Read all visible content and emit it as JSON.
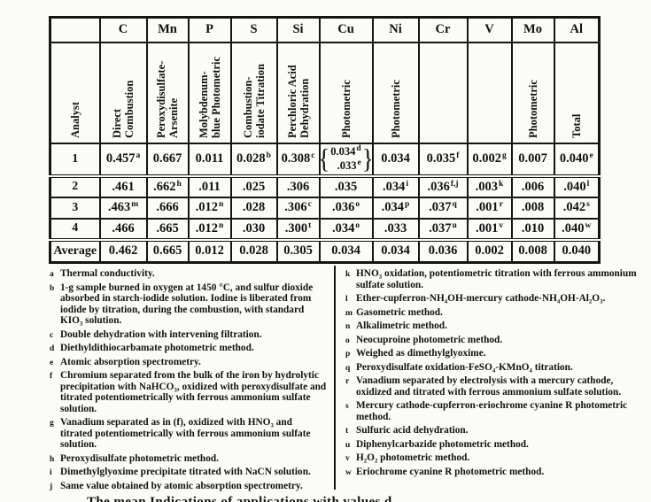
{
  "page": {
    "ink": "#151515",
    "paper": "#fbfbf8"
  },
  "table": {
    "columns": [
      {
        "symbol": "",
        "method": "Analyst"
      },
      {
        "symbol": "C",
        "method": "Direct\nCombustion"
      },
      {
        "symbol": "Mn",
        "method": "Peroxydisulfate-\nArsenite"
      },
      {
        "symbol": "P",
        "method": "Molybdenum-\nblue Photometric"
      },
      {
        "symbol": "S",
        "method": "Combustion-\niodate Titration"
      },
      {
        "symbol": "Si",
        "method": "Perchloric Acid\nDehydration"
      },
      {
        "symbol": "Cu",
        "method": "Photometric"
      },
      {
        "symbol": "Ni",
        "method": "Photometric"
      },
      {
        "symbol": "Cr",
        "method": ""
      },
      {
        "symbol": "V",
        "method": ""
      },
      {
        "symbol": "Mo",
        "method": "Photometric"
      },
      {
        "symbol": "Al",
        "method": "Total"
      }
    ],
    "rows": [
      {
        "label": "1",
        "cells": [
          {
            "v": "0.457",
            "s": "a"
          },
          {
            "v": "0.667"
          },
          {
            "v": "0.011"
          },
          {
            "v": "0.028",
            "s": "b"
          },
          {
            "v": "0.308",
            "s": "c"
          },
          {
            "split": [
              {
                "v": "0.034",
                "s": "d"
              },
              {
                "v": ".033",
                "s": "e"
              }
            ]
          },
          {
            "v": "0.034"
          },
          {
            "v": "0.035",
            "s": "f"
          },
          {
            "v": "0.002",
            "s": "g"
          },
          {
            "v": "0.007"
          },
          {
            "v": "0.040",
            "s": "e"
          }
        ]
      },
      {
        "label": "2",
        "cells": [
          {
            "v": ".461"
          },
          {
            "v": ".662",
            "s": "h"
          },
          {
            "v": ".011"
          },
          {
            "v": ".025"
          },
          {
            "v": ".306"
          },
          {
            "v": ".035"
          },
          {
            "v": ".034",
            "s": "i"
          },
          {
            "v": ".036",
            "s": "f,j"
          },
          {
            "v": ".003",
            "s": "k"
          },
          {
            "v": ".006"
          },
          {
            "v": ".040",
            "s": "l"
          }
        ]
      },
      {
        "label": "3",
        "cells": [
          {
            "v": ".463",
            "s": "m"
          },
          {
            "v": ".666"
          },
          {
            "v": ".012",
            "s": "n"
          },
          {
            "v": ".028"
          },
          {
            "v": ".306",
            "s": "c"
          },
          {
            "v": ".036",
            "s": "o"
          },
          {
            "v": ".034",
            "s": "p"
          },
          {
            "v": ".037",
            "s": "q"
          },
          {
            "v": ".001",
            "s": "r"
          },
          {
            "v": ".008"
          },
          {
            "v": ".042",
            "s": "s"
          }
        ]
      },
      {
        "label": "4",
        "cells": [
          {
            "v": ".466"
          },
          {
            "v": ".665"
          },
          {
            "v": ".012",
            "s": "n"
          },
          {
            "v": ".030"
          },
          {
            "v": ".300",
            "s": "t"
          },
          {
            "v": ".034",
            "s": "o"
          },
          {
            "v": ".033"
          },
          {
            "v": ".037",
            "s": "u"
          },
          {
            "v": ".001",
            "s": "v"
          },
          {
            "v": ".010"
          },
          {
            "v": ".040",
            "s": "w"
          }
        ]
      },
      {
        "label": "Average",
        "cells": [
          {
            "v": "0.462"
          },
          {
            "v": "0.665"
          },
          {
            "v": "0.012"
          },
          {
            "v": "0.028"
          },
          {
            "v": "0.305"
          },
          {
            "v": "0.034"
          },
          {
            "v": "0.034"
          },
          {
            "v": "0.036"
          },
          {
            "v": "0.002"
          },
          {
            "v": "0.008"
          },
          {
            "v": "0.040"
          }
        ]
      }
    ]
  },
  "footnotes": {
    "left": [
      {
        "k": "a",
        "text": "Thermal conductivity."
      },
      {
        "k": "b",
        "text": "1-g sample burned in oxygen at 1450 °C, and sulfur dioxide absorbed in starch-iodide solution. Iodine is liberated from iodide by titration, during the combustion, with standard KIO₃ solution."
      },
      {
        "k": "c",
        "text": "Double dehydration with intervening filtration."
      },
      {
        "k": "d",
        "text": "Diethyldithiocarbamate photometric method."
      },
      {
        "k": "e",
        "text": "Atomic absorption spectrometry."
      },
      {
        "k": "f",
        "text": "Chromium separated from the bulk of the iron by hydrolytic precipitation with NaHCO₃, oxidized with peroxydisulfate and titrated potentiometrically with ferrous ammonium sulfate solution."
      },
      {
        "k": "g",
        "text": "Vanadium separated as in (f), oxidized with HNO₃ and titrated potentiometrically with ferrous ammonium sulfate solution."
      },
      {
        "k": "h",
        "text": "Peroxydisulfate photometric method."
      },
      {
        "k": "i",
        "text": "Dimethylglyoxime precipitate titrated with NaCN solution."
      },
      {
        "k": "j",
        "text": "Same value obtained by atomic absorption spectrometry."
      }
    ],
    "right": [
      {
        "k": "k",
        "text": "HNO₃ oxidation, potentiometric titration with ferrous ammonium sulfate solution."
      },
      {
        "k": "l",
        "text": "Ether-cupferron-NH₄OH-mercury cathode-NH₄OH-Al₂O₃."
      },
      {
        "k": "m",
        "text": "Gasometric method."
      },
      {
        "k": "n",
        "text": "Alkalimetric method."
      },
      {
        "k": "o",
        "text": "Neocuproine photometric method."
      },
      {
        "k": "p",
        "text": "Weighed as dimethylglyoxime."
      },
      {
        "k": "q",
        "text": "Peroxydisulfate oxidation-FeSO₄-KMnO₄ titration."
      },
      {
        "k": "r",
        "text": "Vanadium separated by electrolysis with a mercury cathode, oxidized and titrated with ferrous ammonium sulfate solution."
      },
      {
        "k": "s",
        "text": "Mercury cathode-cupferron-eriochrome cyanine R photometric method."
      },
      {
        "k": "t",
        "text": "Sulfuric acid dehydration."
      },
      {
        "k": "u",
        "text": "Diphenylcarbazide photometric method."
      },
      {
        "k": "v",
        "text": "H₂O₂ photometric method."
      },
      {
        "k": "w",
        "text": "Eriochrome cyanine R photometric method."
      }
    ]
  },
  "bottom_clipped_line": "The mean Indications of applications with values d"
}
